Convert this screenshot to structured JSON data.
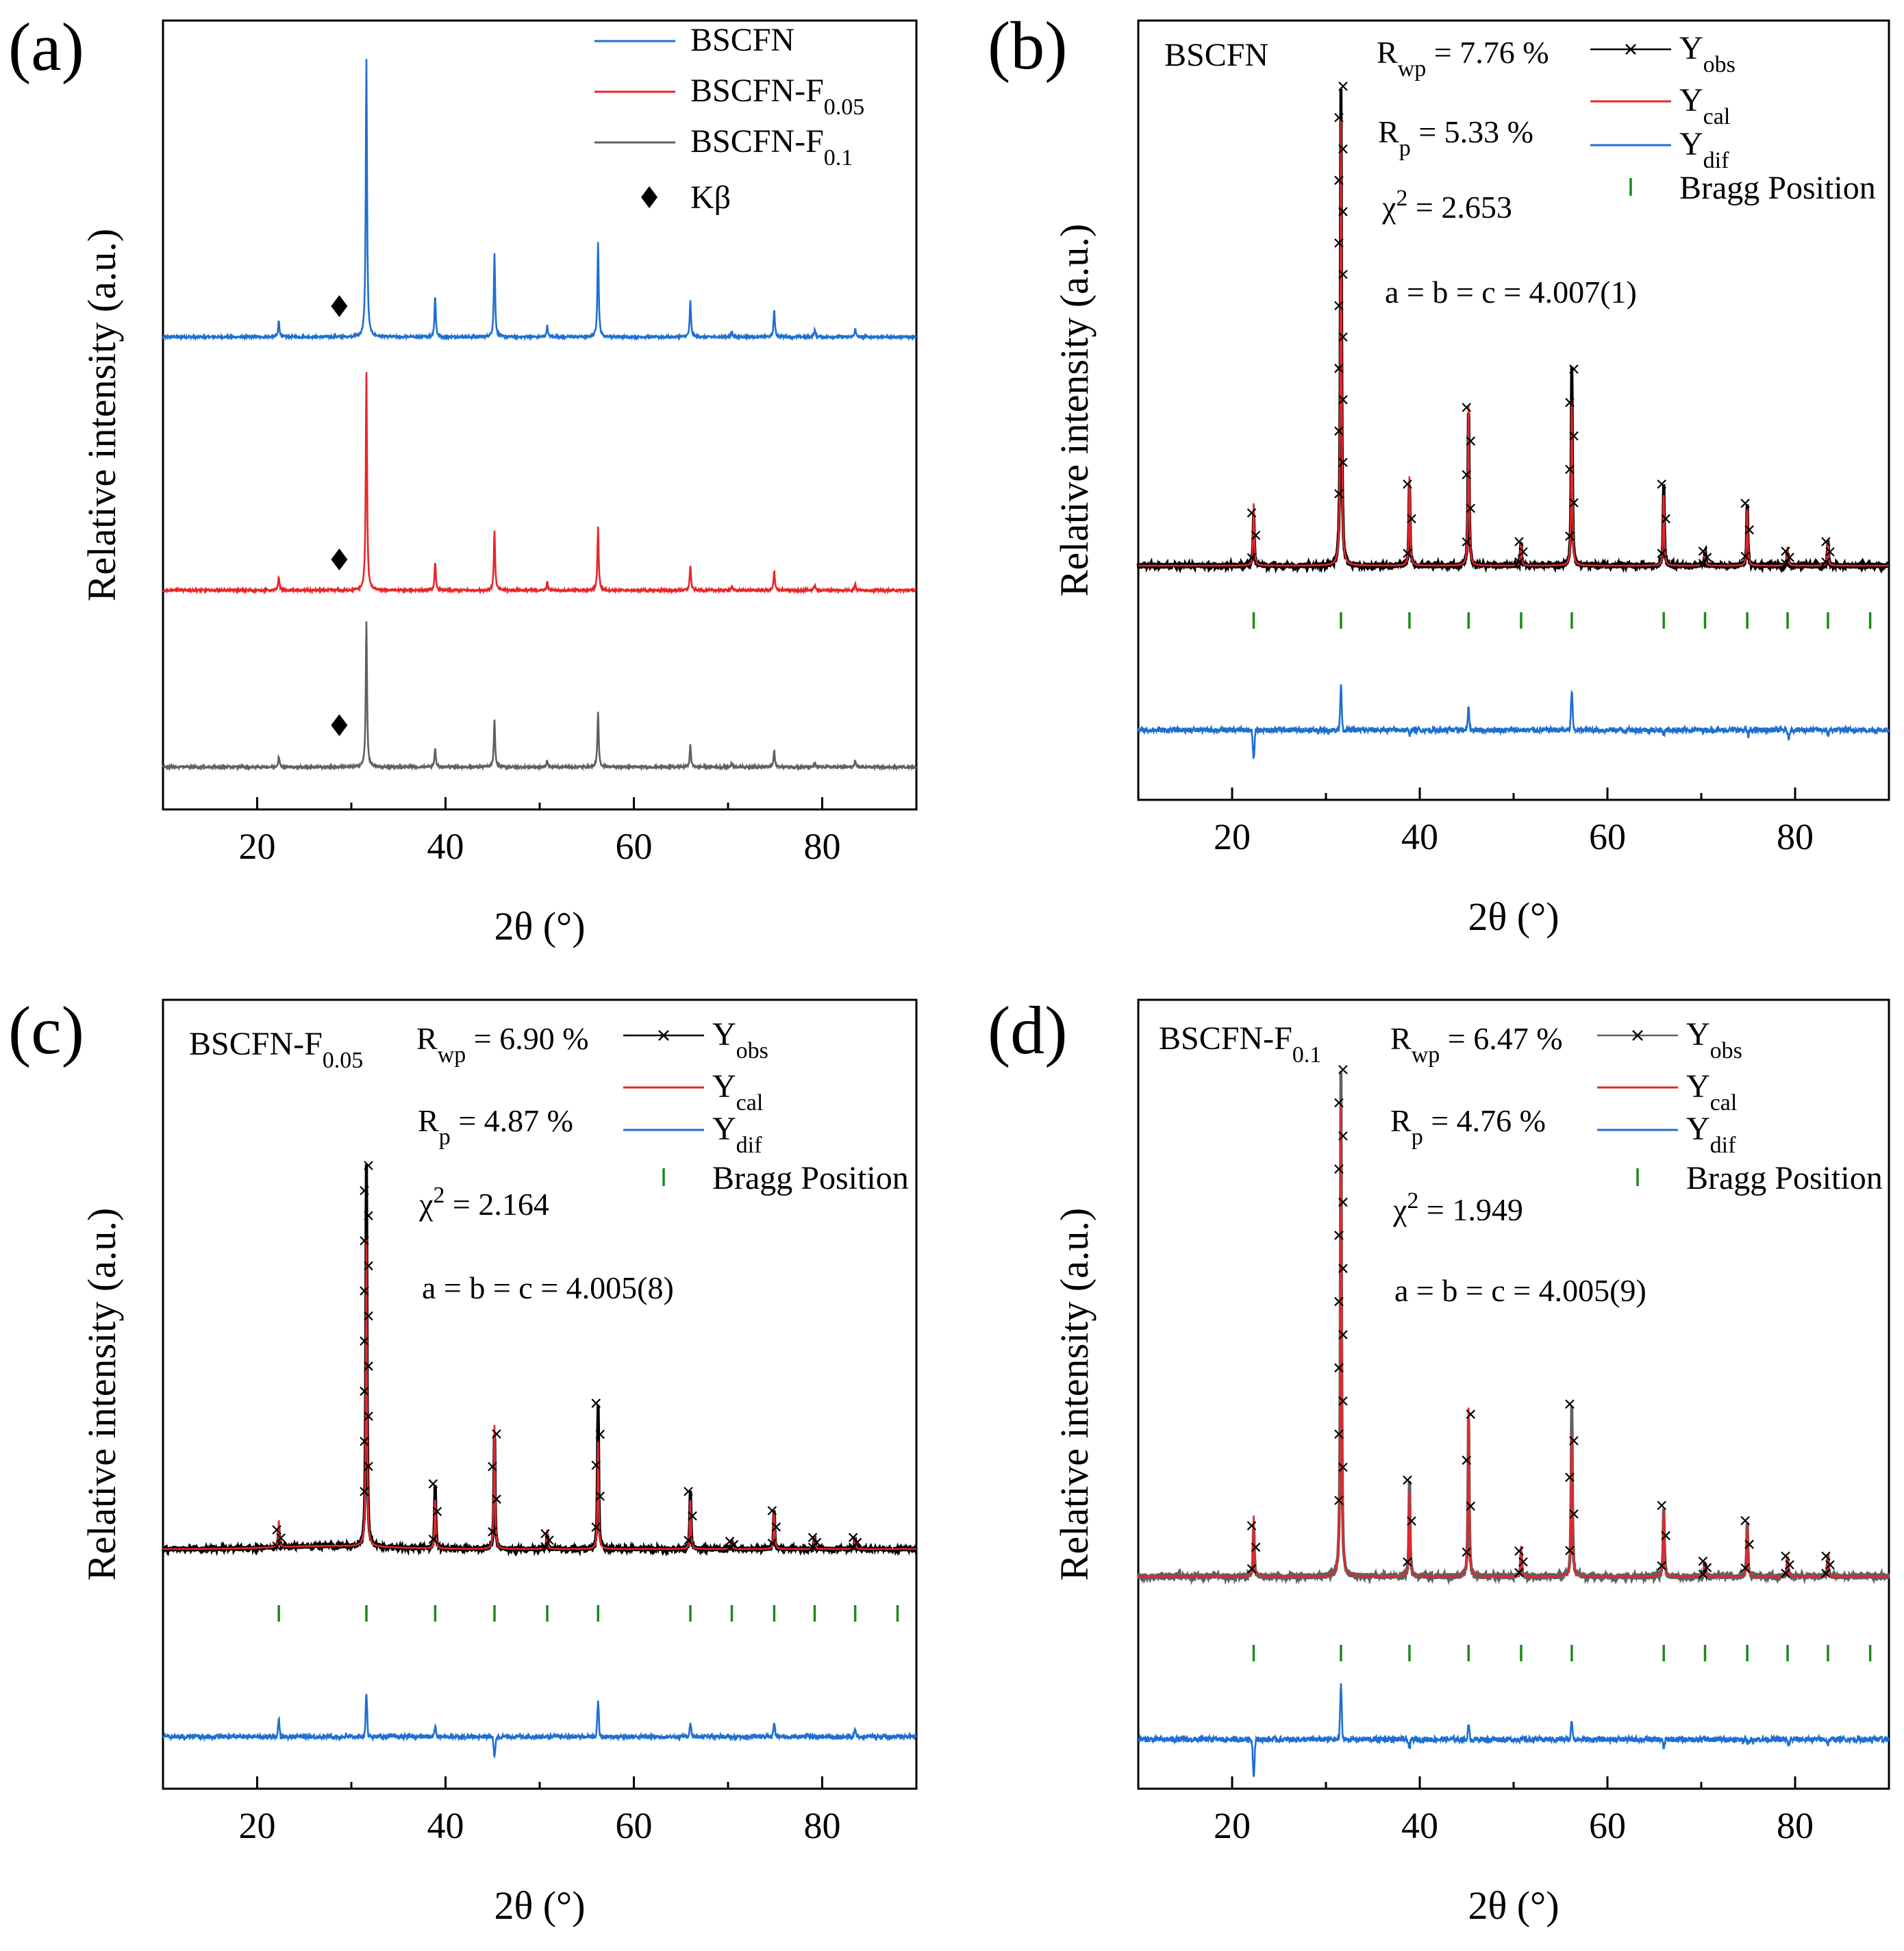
{
  "figure": {
    "xlabel": "2θ (°)",
    "ylabel": "Relative intensity (a.u.)"
  },
  "colors": {
    "blue": "#1f6fd1",
    "red": "#e8262a",
    "gray": "#606060",
    "black": "#000000",
    "green": "#1b8a1b"
  },
  "chart_data": [
    {
      "type": "line",
      "panel": "(a)",
      "title": "",
      "xlabel": "2θ (°)",
      "ylabel": "Relative intensity (a.u.)",
      "xlim": [
        10,
        90
      ],
      "xticks": [
        20,
        40,
        60,
        80
      ],
      "y_ticks_shown": false,
      "legend_position": "top-right",
      "peak_positions": [
        22.3,
        31.6,
        38.9,
        45.2,
        50.8,
        56.2,
        66.0,
        70.4,
        74.9,
        79.2,
        83.5
      ],
      "kbeta_position": 28.5,
      "series": [
        {
          "name": "BSCFN",
          "name_base": "BSCFN",
          "name_sub": "",
          "color": "blue",
          "offset": 2.0,
          "peak_heights": [
            0.06,
            1.0,
            0.15,
            0.3,
            0.04,
            0.34,
            0.13,
            0.02,
            0.1,
            0.025,
            0.03
          ]
        },
        {
          "name": "BSCFN-F0.05",
          "name_base": "BSCFN-F",
          "name_sub": "0.05",
          "color": "red",
          "offset": 1.0,
          "peak_heights": [
            0.05,
            0.8,
            0.1,
            0.22,
            0.03,
            0.23,
            0.09,
            0.015,
            0.07,
            0.02,
            0.025
          ]
        },
        {
          "name": "BSCFN-F0.1",
          "name_base": "BSCFN-F",
          "name_sub": "0.1",
          "color": "gray",
          "offset": 0.0,
          "peak_heights": [
            0.04,
            0.53,
            0.07,
            0.17,
            0.025,
            0.2,
            0.08,
            0.015,
            0.06,
            0.015,
            0.02
          ]
        }
      ],
      "legend": [
        {
          "label": "BSCFN",
          "base": "BSCFN",
          "sub": "",
          "kind": "line",
          "color": "blue"
        },
        {
          "label": "BSCFN-F0.05",
          "base": "BSCFN-F",
          "sub": "0.05",
          "kind": "line",
          "color": "red"
        },
        {
          "label": "BSCFN-F0.1",
          "base": "BSCFN-F",
          "sub": "0.1",
          "kind": "line",
          "color": "gray"
        },
        {
          "label": "Kβ",
          "base": "Kβ",
          "sub": "",
          "kind": "diamond",
          "color": "black"
        }
      ]
    },
    {
      "type": "line",
      "panel": "(b)",
      "sample": "BSCFN",
      "sample_base": "BSCFN",
      "sample_sub": "",
      "xlabel": "2θ (°)",
      "ylabel": "Relative intensity (a.u.)",
      "xlim": [
        10,
        90
      ],
      "xticks": [
        20,
        40,
        60,
        80
      ],
      "y_ticks_shown": false,
      "stats": {
        "Rwp_label": "R",
        "Rwp_sub": "wp",
        "Rwp": "= 7.76 %",
        "Rp_label": "R",
        "Rp_sub": "p",
        "Rp": "= 5.33 %",
        "chi2_label": "χ",
        "chi2_sup": "2",
        "chi2": "= 2.653",
        "lattice": "a = b = c = 4.007(1)"
      },
      "legend": [
        {
          "label": "Yobs",
          "base": "Y",
          "sub": "obs",
          "kind": "cross-line",
          "color": "black"
        },
        {
          "label": "Ycal",
          "base": "Y",
          "sub": "cal",
          "kind": "line",
          "color": "red"
        },
        {
          "label": "Ydif",
          "base": "Y",
          "sub": "dif",
          "kind": "line",
          "color": "blue"
        },
        {
          "label": "Bragg Position",
          "base": "Bragg Position",
          "sub": "",
          "kind": "bar",
          "color": "green"
        }
      ],
      "peak_positions": [
        22.3,
        31.6,
        38.9,
        45.2,
        50.8,
        56.2,
        66.0,
        70.4,
        74.9,
        79.2,
        83.5
      ],
      "obs_peak_heights": [
        0.11,
        1.0,
        0.17,
        0.33,
        0.05,
        0.41,
        0.17,
        0.03,
        0.13,
        0.03,
        0.05
      ],
      "cal_peak_heights": [
        0.13,
        0.93,
        0.19,
        0.34,
        0.05,
        0.34,
        0.15,
        0.03,
        0.12,
        0.04,
        0.05
      ],
      "bragg_positions": [
        22.3,
        31.6,
        38.9,
        45.2,
        50.8,
        56.2,
        66.0,
        70.4,
        74.9,
        79.2,
        83.5,
        88.0
      ],
      "dif_spikes": [
        [
          22.3,
          -0.07
        ],
        [
          31.6,
          0.1
        ],
        [
          45.2,
          0.05
        ],
        [
          56.2,
          0.09
        ],
        [
          38.9,
          -0.01
        ],
        [
          66.0,
          -0.01
        ],
        [
          75.0,
          -0.015
        ],
        [
          79.3,
          -0.02
        ],
        [
          83.5,
          -0.01
        ]
      ]
    },
    {
      "type": "line",
      "panel": "(c)",
      "sample": "BSCFN-F0.05",
      "sample_base": "BSCFN-F",
      "sample_sub": "0.05",
      "xlabel": "2θ (°)",
      "ylabel": "Relative intensity (a.u.)",
      "xlim": [
        10,
        90
      ],
      "xticks": [
        20,
        40,
        60,
        80
      ],
      "y_ticks_shown": false,
      "stats": {
        "Rwp_label": "R",
        "Rwp_sub": "wp",
        "Rwp": "= 6.90 %",
        "Rp_label": "R",
        "Rp_sub": "p",
        "Rp": "= 4.87 %",
        "chi2_label": "χ",
        "chi2_sup": "2",
        "chi2": "= 2.164",
        "lattice": "a = b = c = 4.005(8)"
      },
      "legend": [
        {
          "label": "Yobs",
          "base": "Y",
          "sub": "obs",
          "kind": "cross-line",
          "color": "black"
        },
        {
          "label": "Ycal",
          "base": "Y",
          "sub": "cal",
          "kind": "line",
          "color": "red"
        },
        {
          "label": "Ydif",
          "base": "Y",
          "sub": "dif",
          "kind": "line",
          "color": "blue"
        },
        {
          "label": "Bragg Position",
          "base": "Bragg Position",
          "sub": "",
          "kind": "bar",
          "color": "green"
        }
      ],
      "peak_positions": [
        22.3,
        31.6,
        38.9,
        45.2,
        50.8,
        56.2,
        66.0,
        70.4,
        74.9,
        79.2,
        83.5
      ],
      "obs_peak_heights": [
        0.05,
        1.0,
        0.17,
        0.3,
        0.04,
        0.38,
        0.15,
        0.02,
        0.1,
        0.03,
        0.03
      ],
      "cal_peak_heights": [
        0.07,
        0.8,
        0.13,
        0.33,
        0.05,
        0.28,
        0.13,
        0.02,
        0.1,
        0.03,
        0.03
      ],
      "bragg_positions": [
        22.3,
        31.6,
        38.9,
        45.2,
        50.8,
        56.2,
        66.0,
        70.4,
        74.9,
        79.2,
        83.5,
        88.0
      ],
      "dif_spikes": [
        [
          22.3,
          0.05
        ],
        [
          31.6,
          0.12
        ],
        [
          38.9,
          0.03
        ],
        [
          45.2,
          -0.06
        ],
        [
          56.2,
          0.1
        ],
        [
          66.0,
          0.04
        ],
        [
          74.9,
          0.04
        ],
        [
          83.5,
          0.02
        ]
      ]
    },
    {
      "type": "line",
      "panel": "(d)",
      "sample": "BSCFN-F0.1",
      "sample_base": "BSCFN-F",
      "sample_sub": "0.1",
      "xlabel": "2θ (°)",
      "ylabel": "Relative intensity (a.u.)",
      "xlim": [
        10,
        90
      ],
      "xticks": [
        20,
        40,
        60,
        80
      ],
      "y_ticks_shown": false,
      "stats": {
        "Rwp_label": "R",
        "Rwp_sub": "wp",
        "Rwp": "= 6.47 %",
        "Rp_label": "R",
        "Rp_sub": "p",
        "Rp": "= 4.76 %",
        "chi2_label": "χ",
        "chi2_sup": "2",
        "chi2": "= 1.949",
        "lattice": "a = b = c = 4.005(9)"
      },
      "legend": [
        {
          "label": "Yobs",
          "base": "Y",
          "sub": "obs",
          "kind": "cross-line",
          "color": "gray"
        },
        {
          "label": "Ycal",
          "base": "Y",
          "sub": "cal",
          "kind": "line",
          "color": "red"
        },
        {
          "label": "Ydif",
          "base": "Y",
          "sub": "dif",
          "kind": "line",
          "color": "blue"
        },
        {
          "label": "Bragg Position",
          "base": "Bragg Position",
          "sub": "",
          "kind": "bar",
          "color": "green"
        }
      ],
      "peak_positions": [
        22.3,
        31.6,
        38.9,
        45.2,
        50.8,
        56.2,
        66.0,
        70.4,
        74.9,
        79.2,
        83.5
      ],
      "obs_peak_heights": [
        0.1,
        1.0,
        0.19,
        0.32,
        0.05,
        0.34,
        0.14,
        0.03,
        0.11,
        0.04,
        0.04
      ],
      "cal_peak_heights": [
        0.12,
        0.93,
        0.17,
        0.34,
        0.06,
        0.28,
        0.13,
        0.03,
        0.1,
        0.04,
        0.04
      ],
      "bragg_positions": [
        22.3,
        31.6,
        38.9,
        45.2,
        50.8,
        56.2,
        66.0,
        70.4,
        74.9,
        79.2,
        83.5,
        88.0
      ],
      "dif_spikes": [
        [
          22.3,
          -0.08
        ],
        [
          31.6,
          0.12
        ],
        [
          45.2,
          0.03
        ],
        [
          56.2,
          0.04
        ],
        [
          38.9,
          -0.02
        ],
        [
          66.0,
          -0.02
        ],
        [
          75.0,
          -0.01
        ],
        [
          79.3,
          -0.015
        ],
        [
          83.5,
          -0.01
        ]
      ]
    }
  ]
}
